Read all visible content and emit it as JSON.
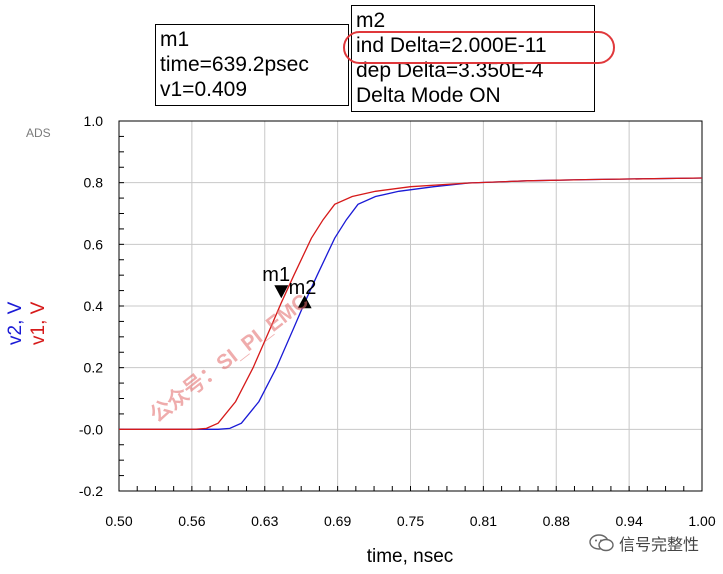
{
  "chart_data": {
    "type": "line",
    "tool_label": "ADS",
    "xlabel": "time, nsec",
    "ylabels": [
      "v2, V",
      "v1, V"
    ],
    "xlim": [
      0.5,
      1.0
    ],
    "ylim": [
      -0.2,
      1.0
    ],
    "x_ticks": [
      "0.50",
      "0.56",
      "0.63",
      "0.69",
      "0.75",
      "0.81",
      "0.88",
      "0.94",
      "1.00"
    ],
    "x_tick_values": [
      0.5,
      0.5625,
      0.625,
      0.6875,
      0.75,
      0.8125,
      0.875,
      0.9375,
      1.0
    ],
    "y_ticks": [
      "1.0",
      "0.8",
      "0.6",
      "0.4",
      "0.2",
      "-0.0",
      "-0.2"
    ],
    "y_tick_values": [
      1.0,
      0.8,
      0.6,
      0.4,
      0.2,
      0.0,
      -0.2
    ],
    "grid": true,
    "series": [
      {
        "name": "v1",
        "color": "#d61a1a",
        "x": [
          0.5,
          0.55,
          0.565,
          0.575,
          0.585,
          0.6,
          0.615,
          0.63,
          0.639,
          0.65,
          0.665,
          0.675,
          0.685,
          0.7,
          0.72,
          0.75,
          0.8,
          0.85,
          0.9,
          1.0
        ],
        "y": [
          0.0,
          0.0,
          0.0,
          0.003,
          0.02,
          0.09,
          0.2,
          0.33,
          0.409,
          0.5,
          0.62,
          0.68,
          0.73,
          0.755,
          0.772,
          0.787,
          0.799,
          0.806,
          0.81,
          0.815
        ]
      },
      {
        "name": "v2",
        "color": "#1a1ad6",
        "x": [
          0.5,
          0.575,
          0.585,
          0.595,
          0.605,
          0.62,
          0.635,
          0.65,
          0.659,
          0.67,
          0.685,
          0.695,
          0.705,
          0.72,
          0.74,
          0.77,
          0.8,
          0.85,
          0.9,
          1.0
        ],
        "y": [
          0.0,
          0.0,
          0.0,
          0.003,
          0.02,
          0.09,
          0.2,
          0.33,
          0.409,
          0.5,
          0.62,
          0.68,
          0.73,
          0.755,
          0.772,
          0.787,
          0.799,
          0.806,
          0.81,
          0.815
        ]
      }
    ],
    "markers": [
      {
        "name": "m1",
        "x": 0.6392,
        "y": 0.409,
        "symbol": "down-triangle"
      },
      {
        "name": "m2",
        "x": 0.6592,
        "y": 0.409,
        "symbol": "up-triangle"
      }
    ]
  },
  "m1_box": {
    "title": "m1",
    "line1": "time=639.2psec",
    "line2": "v1=0.409"
  },
  "m2_box": {
    "title": "m2",
    "line1": "ind Delta=2.000E-11",
    "line2": "dep Delta=3.350E-4",
    "line3": "Delta Mode ON"
  },
  "watermark": "公众号：SI_PI_EMC",
  "brand": "信号完整性",
  "colors": {
    "v1": "#d61a1a",
    "v2": "#1a1ad6",
    "highlight": "#e0383b",
    "grid": "#c8c8c8"
  }
}
